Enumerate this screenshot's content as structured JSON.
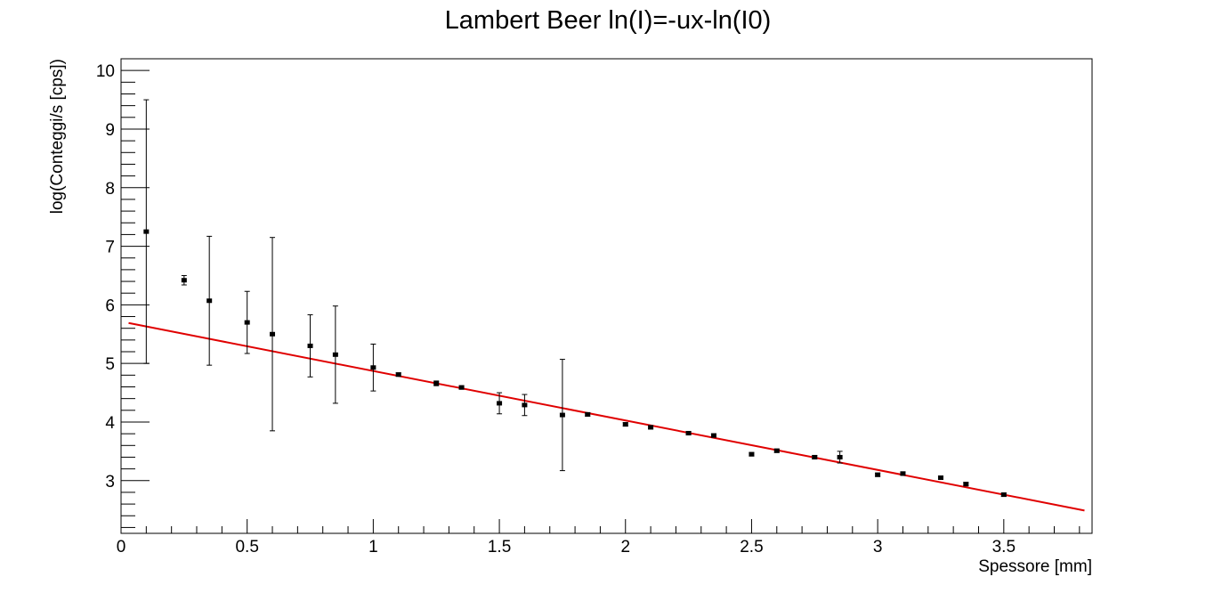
{
  "chart_data": {
    "type": "scatter",
    "title": "Lambert Beer ln(I)=-ux-ln(I0)",
    "xlabel": "Spessore [mm]",
    "ylabel": "log(Conteggi/s [cps])",
    "xlim": [
      0,
      3.85
    ],
    "ylim": [
      2.1,
      10.2
    ],
    "x_ticks": [
      0,
      0.5,
      1,
      1.5,
      2,
      2.5,
      3,
      3.5
    ],
    "x_tick_labels": [
      "0",
      "0.5",
      "1",
      "1.5",
      "2",
      "2.5",
      "3",
      "3.5"
    ],
    "y_ticks": [
      3,
      4,
      5,
      6,
      7,
      8,
      9,
      10
    ],
    "y_tick_labels": [
      "3",
      "4",
      "5",
      "6",
      "7",
      "8",
      "9",
      "10"
    ],
    "grid": false,
    "legend": "none",
    "series": [
      {
        "kind": "points_with_errors",
        "color": "#000000",
        "points": [
          {
            "x": 0.1,
            "y": 7.25,
            "err": 2.25
          },
          {
            "x": 0.25,
            "y": 6.42,
            "err": 0.08
          },
          {
            "x": 0.35,
            "y": 6.07,
            "err": 1.1
          },
          {
            "x": 0.5,
            "y": 5.7,
            "err": 0.53
          },
          {
            "x": 0.6,
            "y": 5.5,
            "err": 1.65
          },
          {
            "x": 0.75,
            "y": 5.3,
            "err": 0.53
          },
          {
            "x": 0.85,
            "y": 5.15,
            "err": 0.83
          },
          {
            "x": 1.0,
            "y": 4.93,
            "err": 0.4
          },
          {
            "x": 1.1,
            "y": 4.81,
            "err": 0.03
          },
          {
            "x": 1.25,
            "y": 4.66,
            "err": 0.04
          },
          {
            "x": 1.35,
            "y": 4.59,
            "err": 0.03
          },
          {
            "x": 1.5,
            "y": 4.32,
            "err": 0.18
          },
          {
            "x": 1.6,
            "y": 4.29,
            "err": 0.18
          },
          {
            "x": 1.75,
            "y": 4.12,
            "err": 0.95
          },
          {
            "x": 1.85,
            "y": 4.13,
            "err": 0.03
          },
          {
            "x": 2.0,
            "y": 3.96,
            "err": 0.03
          },
          {
            "x": 2.1,
            "y": 3.91,
            "err": 0.03
          },
          {
            "x": 2.25,
            "y": 3.81,
            "err": 0.03
          },
          {
            "x": 2.35,
            "y": 3.77,
            "err": 0.03
          },
          {
            "x": 2.5,
            "y": 3.45,
            "err": 0.03
          },
          {
            "x": 2.6,
            "y": 3.51,
            "err": 0.03
          },
          {
            "x": 2.75,
            "y": 3.4,
            "err": 0.03
          },
          {
            "x": 2.85,
            "y": 3.4,
            "err": 0.1
          },
          {
            "x": 3.0,
            "y": 3.1,
            "err": 0.03
          },
          {
            "x": 3.1,
            "y": 3.12,
            "err": 0.03
          },
          {
            "x": 3.25,
            "y": 3.05,
            "err": 0.03
          },
          {
            "x": 3.35,
            "y": 2.94,
            "err": 0.03
          },
          {
            "x": 3.5,
            "y": 2.76,
            "err": 0.03
          }
        ]
      },
      {
        "kind": "fit_line",
        "color": "#e00000",
        "x": [
          0.03,
          3.82
        ],
        "y": [
          5.69,
          2.49
        ]
      }
    ]
  }
}
